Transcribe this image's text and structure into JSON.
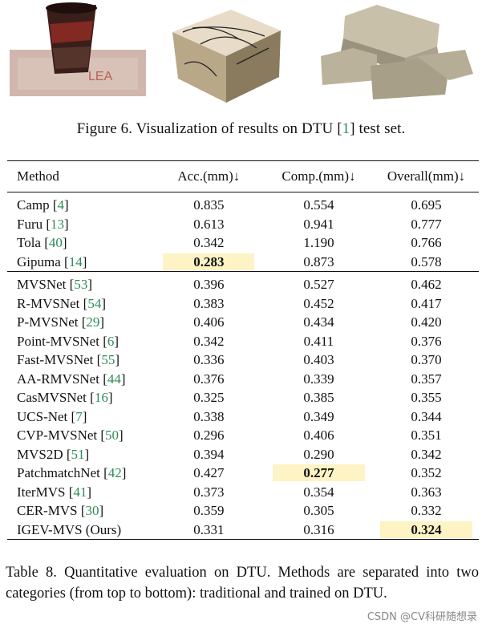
{
  "figure": {
    "caption_prefix": "Figure 6. Visualization of results on DTU [",
    "caption_ref": "1",
    "caption_suffix": "] test set.",
    "thumbnails": [
      "bucket-reconstruction",
      "box-reconstruction",
      "bricks-reconstruction"
    ]
  },
  "table": {
    "headers": [
      "Method",
      "Acc.(mm)↓",
      "Comp.(mm)↓",
      "Overall(mm)↓"
    ],
    "traditional": [
      {
        "name": "Camp [",
        "ref": "4",
        "acc": "0.835",
        "comp": "0.554",
        "overall": "0.695"
      },
      {
        "name": "Furu [",
        "ref": "13",
        "acc": "0.613",
        "comp": "0.941",
        "overall": "0.777"
      },
      {
        "name": "Tola [",
        "ref": "40",
        "acc": "0.342",
        "comp": "1.190",
        "overall": "0.766"
      },
      {
        "name": "Gipuma [",
        "ref": "14",
        "acc": "0.283",
        "comp": "0.873",
        "overall": "0.578"
      }
    ],
    "trained": [
      {
        "name": "MVSNet [",
        "ref": "53",
        "acc": "0.396",
        "comp": "0.527",
        "overall": "0.462"
      },
      {
        "name": "R-MVSNet [",
        "ref": "54",
        "acc": "0.383",
        "comp": "0.452",
        "overall": "0.417"
      },
      {
        "name": "P-MVSNet [",
        "ref": "29",
        "acc": "0.406",
        "comp": "0.434",
        "overall": "0.420"
      },
      {
        "name": "Point-MVSNet [",
        "ref": "6",
        "acc": "0.342",
        "comp": "0.411",
        "overall": "0.376"
      },
      {
        "name": "Fast-MVSNet [",
        "ref": "55",
        "acc": "0.336",
        "comp": "0.403",
        "overall": "0.370"
      },
      {
        "name": "AA-RMVSNet [",
        "ref": "44",
        "acc": "0.376",
        "comp": "0.339",
        "overall": "0.357"
      },
      {
        "name": "CasMVSNet [",
        "ref": "16",
        "acc": "0.325",
        "comp": "0.385",
        "overall": "0.355"
      },
      {
        "name": "UCS-Net [",
        "ref": "7",
        "acc": "0.338",
        "comp": "0.349",
        "overall": "0.344"
      },
      {
        "name": "CVP-MVSNet [",
        "ref": "50",
        "acc": "0.296",
        "comp": "0.406",
        "overall": "0.351"
      },
      {
        "name": "MVS2D [",
        "ref": "51",
        "acc": "0.394",
        "comp": "0.290",
        "overall": "0.342"
      },
      {
        "name": "PatchmatchNet [",
        "ref": "42",
        "acc": "0.427",
        "comp": "0.277",
        "overall": "0.352"
      },
      {
        "name": "IterMVS [",
        "ref": "41",
        "acc": "0.373",
        "comp": "0.354",
        "overall": "0.363"
      },
      {
        "name": "CER-MVS [",
        "ref": "30",
        "acc": "0.359",
        "comp": "0.305",
        "overall": "0.332"
      },
      {
        "name": "IGEV-MVS (Ours)",
        "ref": "",
        "acc": "0.331",
        "comp": "0.316",
        "overall": "0.324"
      }
    ]
  },
  "table_caption": "Table 8. Quantitative evaluation on DTU. Methods are separated into two categories (from top to bottom): traditional and trained on DTU.",
  "watermark": "CSDN @CV科研随想录"
}
